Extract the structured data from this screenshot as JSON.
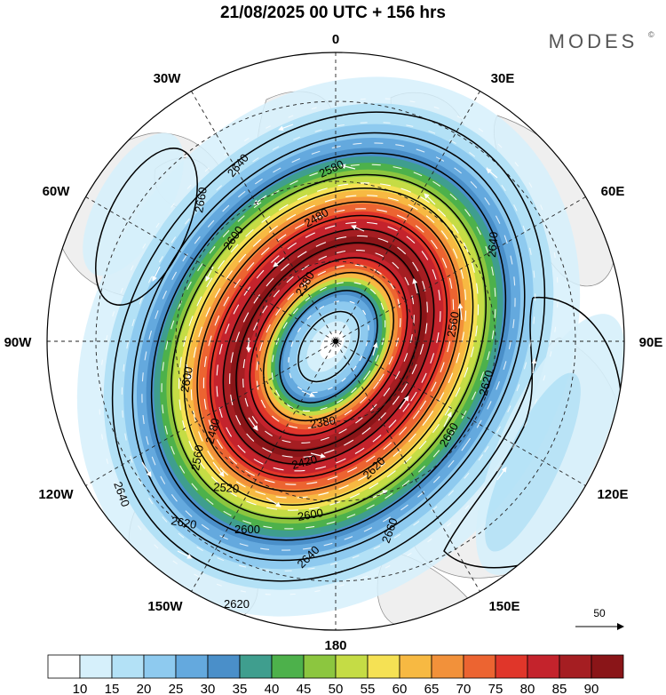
{
  "title": "21/08/2025  00 UTC  + 156 hrs",
  "brand": "MODES",
  "brand_mark": "©",
  "longitude_labels": {
    "lon_0": "0",
    "lon_30e": "30E",
    "lon_60e": "60E",
    "lon_90e": "90E",
    "lon_120e": "120E",
    "lon_150e": "150E",
    "lon_180": "180",
    "lon_150w": "150W",
    "lon_120w": "120W",
    "lon_90w": "90W",
    "lon_60w": "60W",
    "lon_30w": "30W"
  },
  "contour_labels": [
    "2640",
    "2660",
    "2580",
    "2600",
    "2480",
    "2380",
    "2560",
    "2640",
    "2620",
    "2600",
    "2480",
    "2560",
    "2380",
    "2420",
    "2520",
    "2620",
    "2600",
    "2620",
    "2660",
    "2660",
    "2640",
    "2640",
    "2620",
    "2600"
  ],
  "vector_reference": {
    "label": "50"
  },
  "colorbar": {
    "ticks": [
      "10",
      "15",
      "20",
      "25",
      "30",
      "35",
      "40",
      "45",
      "50",
      "55",
      "60",
      "65",
      "70",
      "75",
      "80",
      "85",
      "90"
    ],
    "colors": [
      "#ffffff",
      "#d6f0fb",
      "#b3e1f6",
      "#8ecaef",
      "#64a9de",
      "#4a8fc9",
      "#3f9e8e",
      "#4db14b",
      "#8cc63f",
      "#c5dc45",
      "#f5e154",
      "#f7b942",
      "#f2913a",
      "#ec6431",
      "#e0362a",
      "#c4232c",
      "#a51e22",
      "#8a1518"
    ]
  },
  "colors": {
    "land": "#efefef",
    "coast": "#888888",
    "grid": "#222222",
    "contour": "#000000",
    "vectors": "#ffffff"
  }
}
